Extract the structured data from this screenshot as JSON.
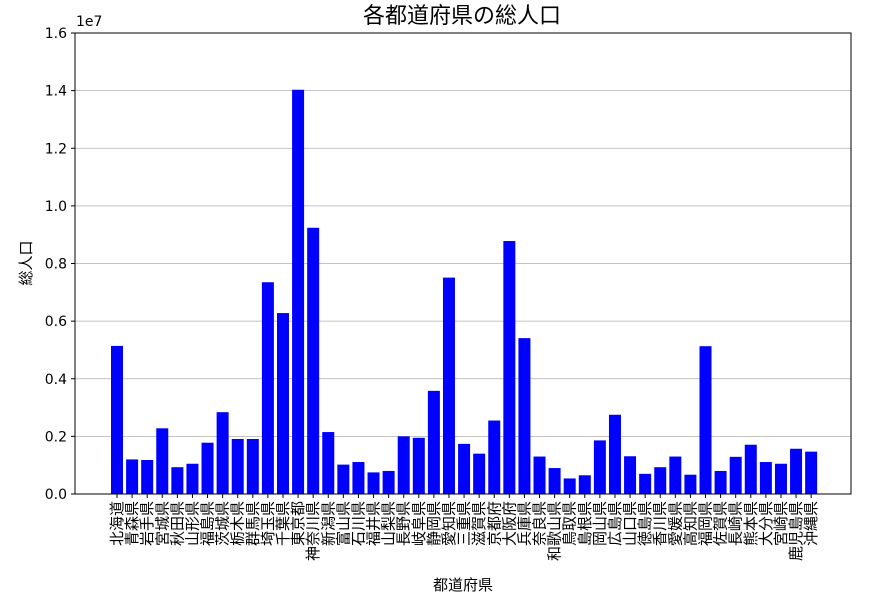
{
  "chart_data": {
    "type": "bar",
    "title": "各都道府県の総人口",
    "xlabel": "都道府県",
    "ylabel": "総人口",
    "y_offset_label": "1e7",
    "ylim": [
      0,
      16000000
    ],
    "yticks": [
      0,
      2000000,
      4000000,
      6000000,
      8000000,
      10000000,
      12000000,
      14000000,
      16000000
    ],
    "ytick_labels": [
      "0.0",
      "0.2",
      "0.4",
      "0.6",
      "0.8",
      "1.0",
      "1.2",
      "1.4",
      "1.6"
    ],
    "grid": "y",
    "bar_color": "#0000ff",
    "categories": [
      "北海道",
      "青森県",
      "岩手県",
      "宮城県",
      "秋田県",
      "山形県",
      "福島県",
      "茨城県",
      "栃木県",
      "群馬県",
      "埼玉県",
      "千葉県",
      "東京都",
      "神奈川県",
      "新潟県",
      "富山県",
      "石川県",
      "福井県",
      "山梨県",
      "長野県",
      "岐阜県",
      "静岡県",
      "愛知県",
      "三重県",
      "滋賀県",
      "京都府",
      "大阪府",
      "兵庫県",
      "奈良県",
      "和歌山県",
      "鳥取県",
      "島根県",
      "岡山県",
      "広島県",
      "山口県",
      "徳島県",
      "香川県",
      "愛媛県",
      "高知県",
      "福岡県",
      "佐賀県",
      "長崎県",
      "熊本県",
      "大分県",
      "宮崎県",
      "鹿児島県",
      "沖縄県"
    ],
    "values": [
      5140000,
      1200000,
      1180000,
      2280000,
      930000,
      1050000,
      1780000,
      2840000,
      1910000,
      1910000,
      7350000,
      6280000,
      14030000,
      9240000,
      2150000,
      1020000,
      1110000,
      750000,
      800000,
      2000000,
      1950000,
      3580000,
      7510000,
      1740000,
      1400000,
      2550000,
      8780000,
      5410000,
      1300000,
      900000,
      540000,
      650000,
      1860000,
      2750000,
      1310000,
      700000,
      930000,
      1300000,
      670000,
      5130000,
      800000,
      1290000,
      1710000,
      1110000,
      1050000,
      1570000,
      1470000
    ]
  }
}
